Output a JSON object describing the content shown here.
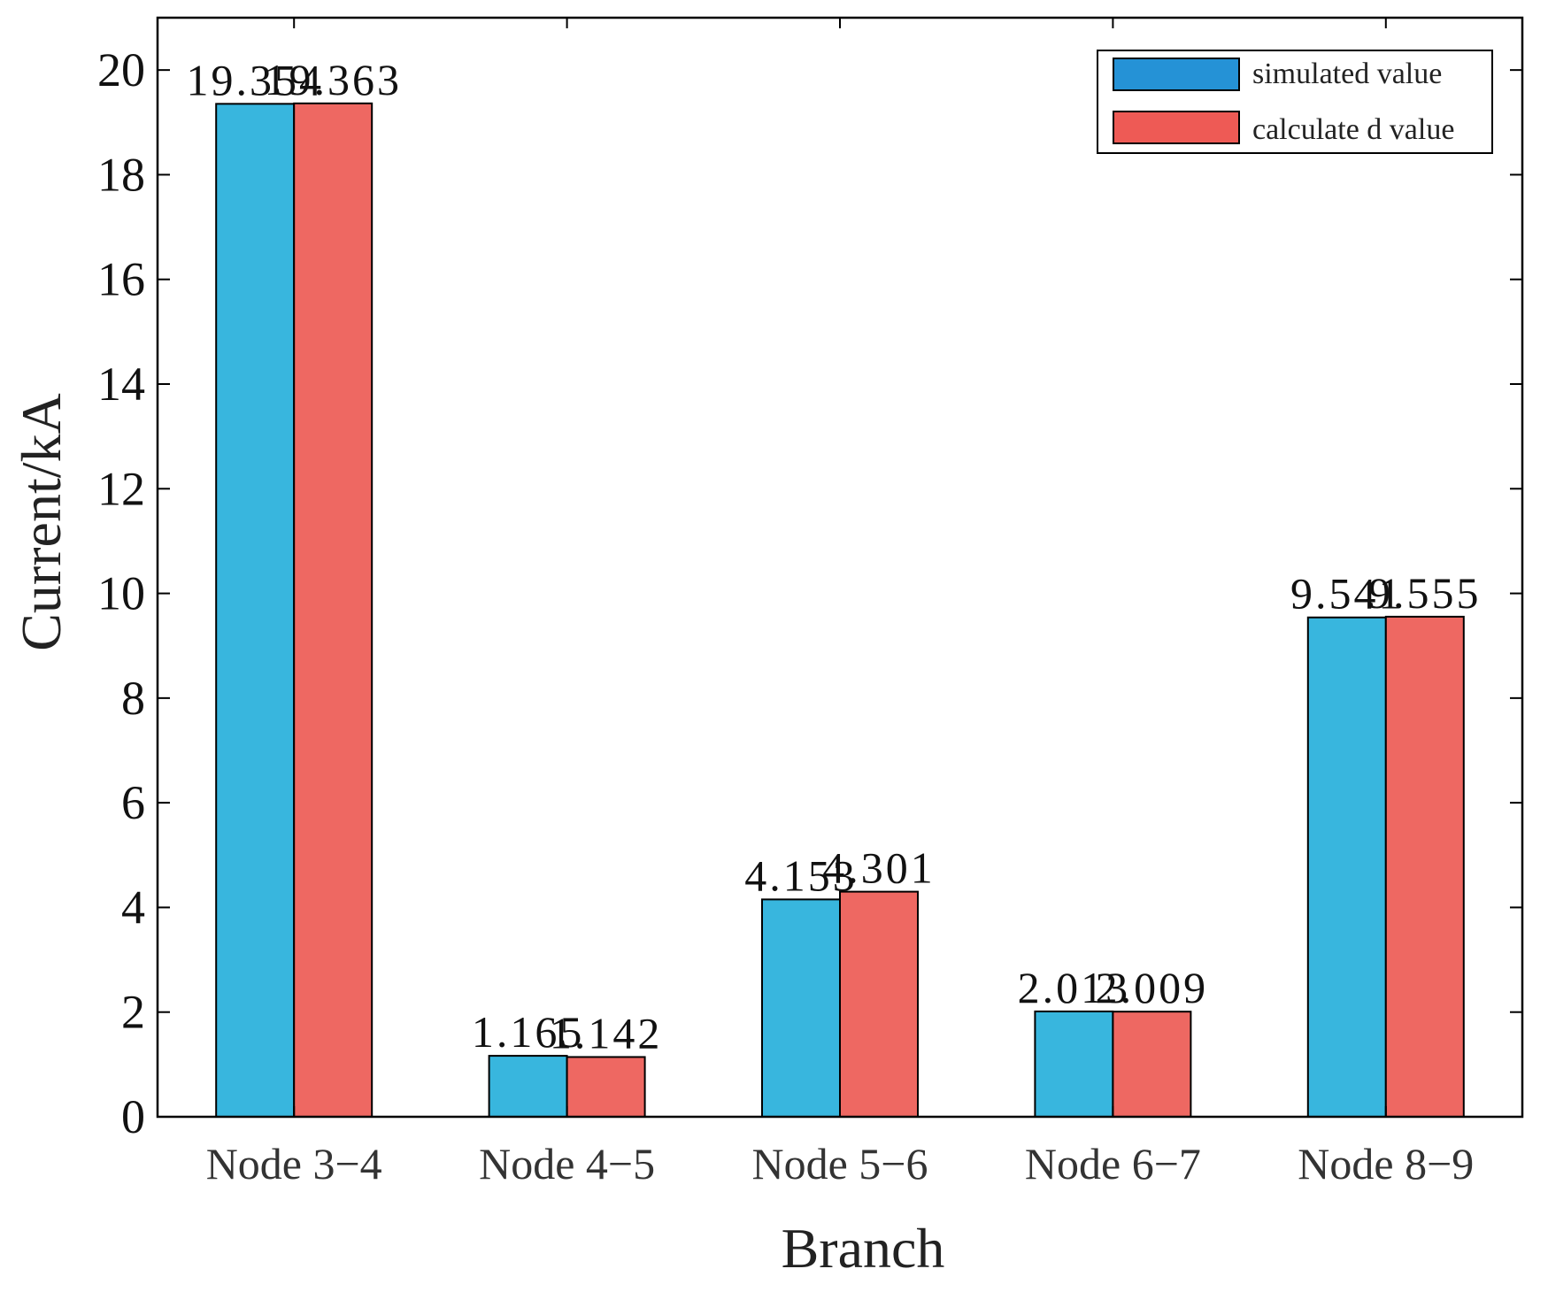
{
  "chart_data": {
    "type": "bar",
    "title": "",
    "xlabel": "Branch",
    "ylabel": "Current/kA",
    "ylim": [
      0,
      21
    ],
    "yticks": [
      0,
      2,
      4,
      6,
      8,
      10,
      12,
      14,
      16,
      18,
      20
    ],
    "categories": [
      "Node 3-4",
      "Node 4-5",
      "Node 5-6",
      "Node 6-7",
      "Node 8-9"
    ],
    "series": [
      {
        "name": "simulated value",
        "color": "#38B6DE",
        "values": [
          19.354,
          1.165,
          4.153,
          2.013,
          9.541
        ],
        "labels": [
          "19.354",
          "1.165",
          "4.153",
          "2.013",
          "9.541"
        ]
      },
      {
        "name": "calculated value",
        "color": "#EE6862",
        "values": [
          19.363,
          1.142,
          4.301,
          2.009,
          9.555
        ],
        "labels": [
          "19.363",
          "1.142",
          "4.301",
          "2.009",
          "9.555"
        ]
      }
    ],
    "legend": {
      "position": "top-right",
      "entries": [
        "simulated value",
        "calculate d value"
      ],
      "swatch_colors": [
        "#2592D6",
        "#EE5A55"
      ]
    },
    "grid": false
  }
}
